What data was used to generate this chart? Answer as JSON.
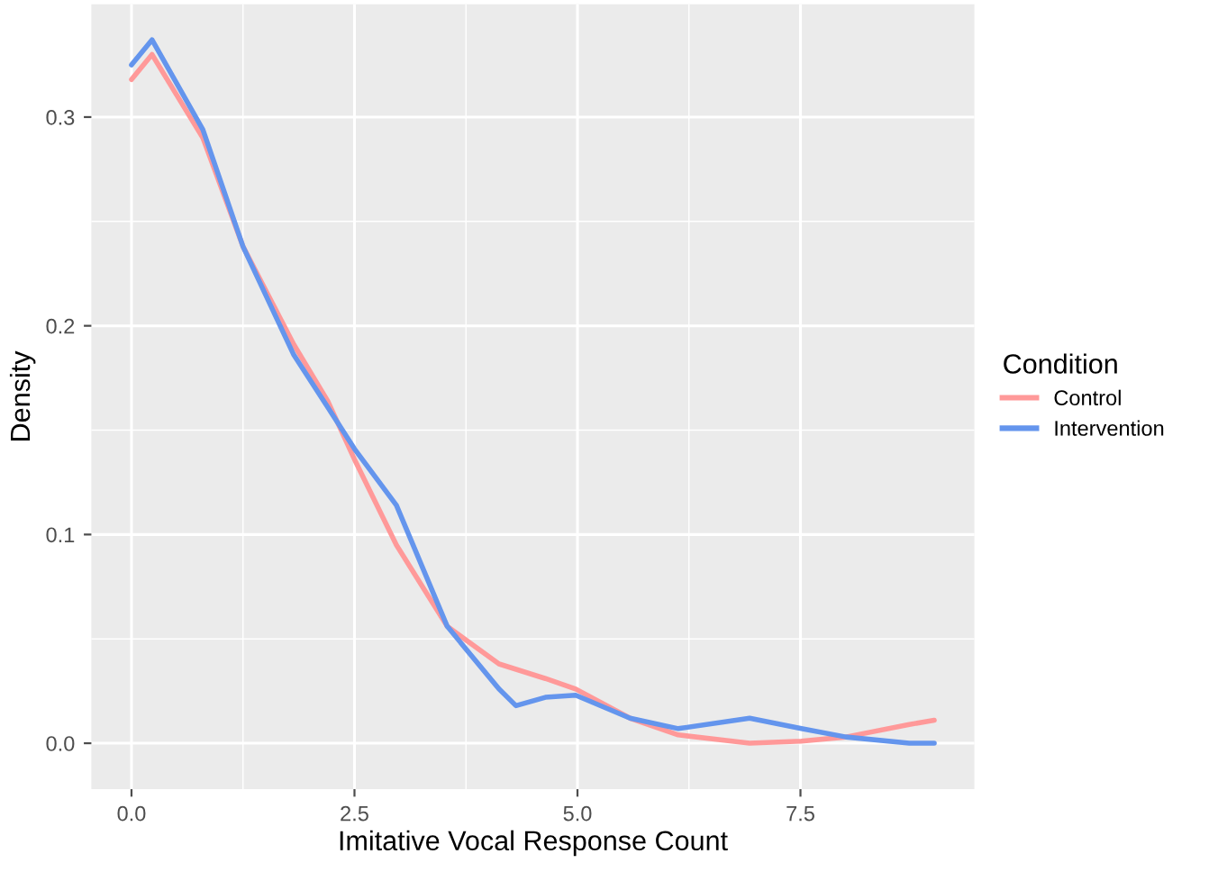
{
  "chart_data": {
    "type": "line",
    "xlabel": "Imitative Vocal Response Count",
    "ylabel": "Density",
    "legend_title": "Condition",
    "legend": "right",
    "grid": true,
    "xlim": [
      -0.45,
      9.45
    ],
    "ylim": [
      -0.022,
      0.354
    ],
    "xticks": [
      {
        "value": 0,
        "label": "0.0"
      },
      {
        "value": 2.5,
        "label": "2.5"
      },
      {
        "value": 5,
        "label": "5.0"
      },
      {
        "value": 7.5,
        "label": "7.5"
      }
    ],
    "yticks": [
      {
        "value": 0,
        "label": "0.0"
      },
      {
        "value": 0.1,
        "label": "0.1"
      },
      {
        "value": 0.2,
        "label": "0.2"
      },
      {
        "value": 0.3,
        "label": "0.3"
      }
    ],
    "series": [
      {
        "name": "Control",
        "color": "#ff9999",
        "x": [
          0,
          0.23,
          0.8,
          1.25,
          1.82,
          2.2,
          2.5,
          2.97,
          3.54,
          4.12,
          4.64,
          4.98,
          5.59,
          6.13,
          6.93,
          7.51,
          8.01,
          8.72,
          9
        ],
        "values": [
          0.318,
          0.33,
          0.29,
          0.238,
          0.191,
          0.164,
          0.136,
          0.095,
          0.056,
          0.038,
          0.031,
          0.026,
          0.012,
          0.004,
          0.0,
          0.001,
          0.003,
          0.009,
          0.011
        ]
      },
      {
        "name": "Intervention",
        "color": "#6495ed",
        "x": [
          0,
          0.23,
          0.8,
          1.25,
          1.82,
          2.2,
          2.5,
          2.97,
          3.54,
          4.12,
          4.31,
          4.64,
          4.98,
          5.59,
          6.13,
          6.93,
          7.51,
          8.01,
          8.72,
          9
        ],
        "values": [
          0.325,
          0.337,
          0.294,
          0.238,
          0.186,
          0.161,
          0.141,
          0.114,
          0.056,
          0.026,
          0.018,
          0.022,
          0.023,
          0.012,
          0.007,
          0.012,
          0.007,
          0.003,
          0.0,
          0.0
        ]
      }
    ]
  }
}
